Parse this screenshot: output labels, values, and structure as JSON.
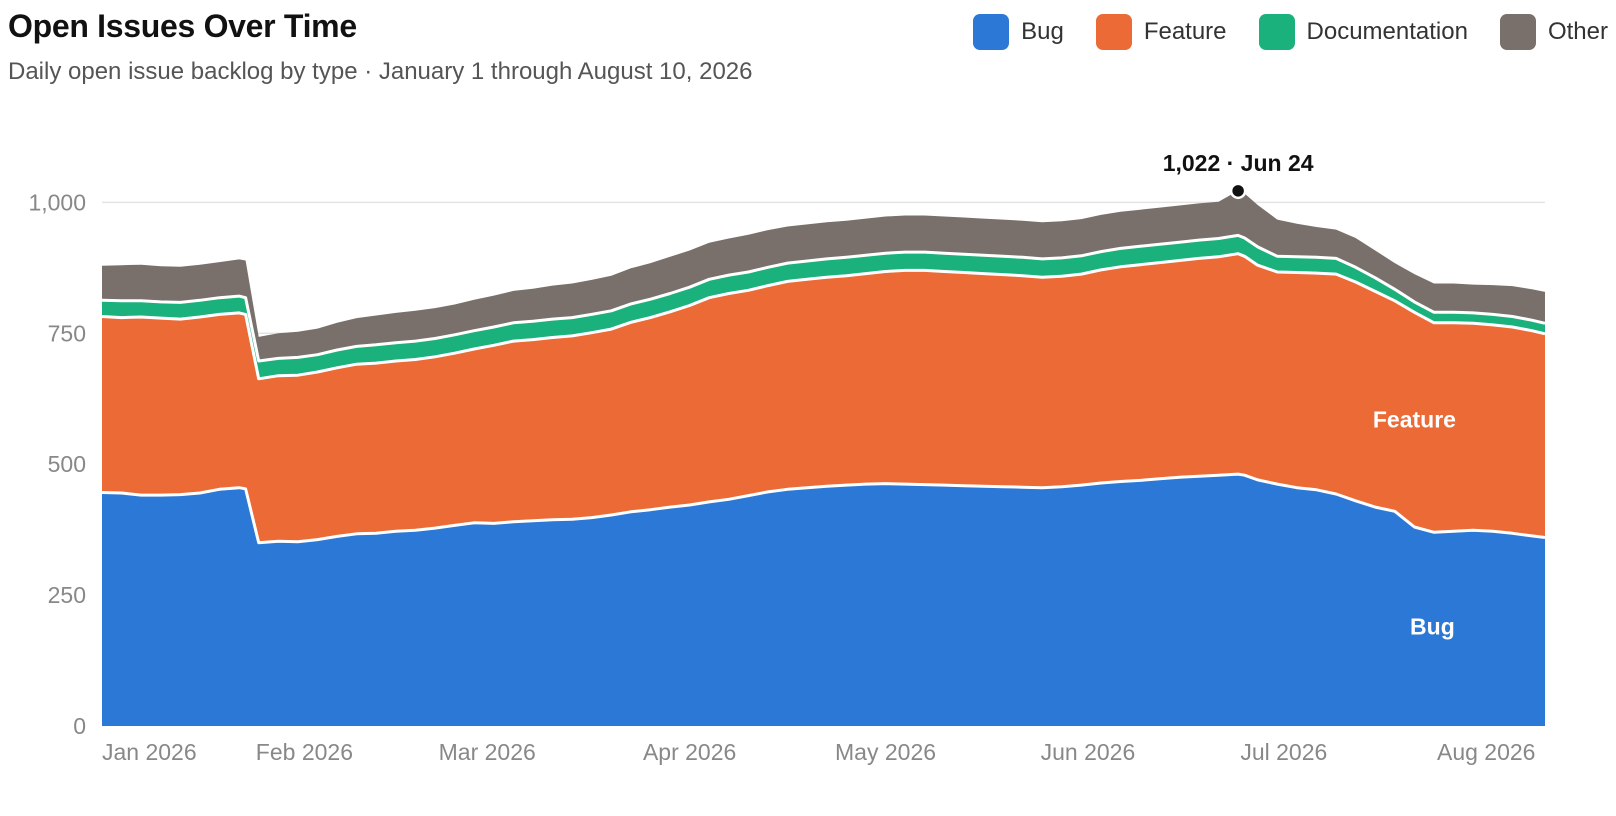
{
  "chart_data": {
    "type": "area",
    "stacked": true,
    "title": "Open Issues Over Time",
    "subtitle": "Daily open issue backlog by type · January 1 through August 10, 2026",
    "y_ticks": [
      {
        "value": 0,
        "label": "0"
      },
      {
        "value": 250,
        "label": "250"
      },
      {
        "value": 500,
        "label": "500"
      },
      {
        "value": 750,
        "label": "750"
      },
      {
        "value": 1000,
        "label": "1,000"
      }
    ],
    "ylim": [
      0,
      1100
    ],
    "x_range": [
      "2026-01-01",
      "2026-08-10"
    ],
    "x_ticks": [
      {
        "date": "2026-01-01",
        "label": "Jan 2026"
      },
      {
        "date": "2026-02-01",
        "label": "Feb 2026"
      },
      {
        "date": "2026-03-01",
        "label": "Mar 2026"
      },
      {
        "date": "2026-04-01",
        "label": "Apr 2026"
      },
      {
        "date": "2026-05-01",
        "label": "May 2026"
      },
      {
        "date": "2026-06-01",
        "label": "Jun 2026"
      },
      {
        "date": "2026-07-01",
        "label": "Jul 2026"
      },
      {
        "date": "2026-08-01",
        "label": "Aug 2026"
      }
    ],
    "grid": "horizontal",
    "legend_position": "top-right",
    "x": [
      "2026-01-01",
      "2026-01-04",
      "2026-01-07",
      "2026-01-10",
      "2026-01-13",
      "2026-01-16",
      "2026-01-19",
      "2026-01-22",
      "2026-01-23",
      "2026-01-25",
      "2026-01-28",
      "2026-01-31",
      "2026-02-03",
      "2026-02-06",
      "2026-02-09",
      "2026-02-12",
      "2026-02-15",
      "2026-02-18",
      "2026-02-21",
      "2026-02-24",
      "2026-02-27",
      "2026-03-02",
      "2026-03-05",
      "2026-03-08",
      "2026-03-11",
      "2026-03-14",
      "2026-03-17",
      "2026-03-20",
      "2026-03-23",
      "2026-03-26",
      "2026-03-29",
      "2026-04-01",
      "2026-04-04",
      "2026-04-07",
      "2026-04-10",
      "2026-04-13",
      "2026-04-16",
      "2026-04-19",
      "2026-04-22",
      "2026-04-25",
      "2026-04-28",
      "2026-05-01",
      "2026-05-04",
      "2026-05-07",
      "2026-05-10",
      "2026-05-13",
      "2026-05-16",
      "2026-05-19",
      "2026-05-22",
      "2026-05-25",
      "2026-05-28",
      "2026-05-31",
      "2026-06-03",
      "2026-06-06",
      "2026-06-09",
      "2026-06-12",
      "2026-06-15",
      "2026-06-18",
      "2026-06-21",
      "2026-06-24",
      "2026-06-25",
      "2026-06-27",
      "2026-06-30",
      "2026-07-03",
      "2026-07-06",
      "2026-07-09",
      "2026-07-12",
      "2026-07-15",
      "2026-07-18",
      "2026-07-21",
      "2026-07-24",
      "2026-07-27",
      "2026-07-30",
      "2026-08-02",
      "2026-08-05",
      "2026-08-08",
      "2026-08-10"
    ],
    "series": [
      {
        "name": "Bug",
        "color": "#2B78D6",
        "values": [
          446,
          445,
          441,
          441,
          442,
          445,
          452,
          455,
          453,
          350,
          353,
          352,
          356,
          362,
          367,
          368,
          372,
          374,
          378,
          383,
          388,
          387,
          390,
          392,
          394,
          395,
          398,
          403,
          409,
          413,
          418,
          422,
          428,
          433,
          440,
          447,
          452,
          455,
          458,
          460,
          462,
          463,
          462,
          461,
          460,
          459,
          458,
          457,
          456,
          455,
          457,
          460,
          464,
          467,
          469,
          472,
          475,
          477,
          479,
          481,
          479,
          470,
          462,
          455,
          451,
          443,
          430,
          418,
          410,
          380,
          370,
          372,
          374,
          372,
          368,
          363,
          360
        ]
      },
      {
        "name": "Feature",
        "color": "#EB6A35",
        "values": [
          336,
          335,
          340,
          338,
          335,
          336,
          334,
          334,
          333,
          313,
          316,
          318,
          320,
          322,
          324,
          325,
          325,
          326,
          327,
          329,
          332,
          340,
          345,
          346,
          348,
          350,
          353,
          355,
          362,
          367,
          373,
          381,
          390,
          393,
          392,
          394,
          397,
          398,
          399,
          400,
          402,
          405,
          408,
          409,
          408,
          407,
          406,
          405,
          404,
          402,
          402,
          403,
          407,
          410,
          412,
          413,
          414,
          416,
          417,
          421,
          418,
          410,
          405,
          411,
          414,
          420,
          418,
          412,
          402,
          410,
          400,
          398,
          395,
          394,
          394,
          392,
          389
        ]
      },
      {
        "name": "Documentation",
        "color": "#1BB17D",
        "values": [
          31,
          32,
          31,
          31,
          32,
          32,
          32,
          32,
          32,
          34,
          33,
          34,
          33,
          34,
          34,
          35,
          35,
          35,
          35,
          35,
          35,
          35,
          35,
          35,
          35,
          35,
          35,
          35,
          35,
          35,
          35,
          35,
          35,
          35,
          35,
          35,
          35,
          35,
          35,
          35,
          35,
          35,
          35,
          35,
          35,
          35,
          35,
          35,
          35,
          35,
          35,
          35,
          35,
          35,
          35,
          35,
          35,
          35,
          35,
          35,
          35,
          35,
          30,
          30,
          30,
          30,
          28,
          26,
          22,
          20,
          20,
          20,
          20,
          20,
          20,
          20,
          20
        ]
      },
      {
        "name": "Other",
        "color": "#7A706B",
        "values": [
          66,
          68,
          69,
          68,
          68,
          68,
          68,
          70,
          71,
          46,
          48,
          49,
          50,
          52,
          54,
          56,
          57,
          58,
          58,
          58,
          59,
          60,
          61,
          62,
          64,
          65,
          66,
          67,
          68,
          69,
          70,
          70,
          70,
          70,
          71,
          71,
          70,
          70,
          70,
          70,
          70,
          70,
          70,
          70,
          70,
          70,
          70,
          70,
          70,
          70,
          70,
          70,
          70,
          70,
          70,
          70,
          70,
          70,
          70,
          85,
          85,
          80,
          70,
          63,
          58,
          55,
          56,
          52,
          50,
          53,
          55,
          55,
          54,
          56,
          58,
          59,
          60
        ]
      }
    ],
    "direct_labels": [
      {
        "series": "Feature",
        "text": "Feature"
      },
      {
        "series": "Bug",
        "text": "Bug"
      }
    ],
    "peak_annotation": {
      "date": "2026-06-24",
      "value": 1022,
      "text": "1,022 · Jun 24"
    }
  }
}
